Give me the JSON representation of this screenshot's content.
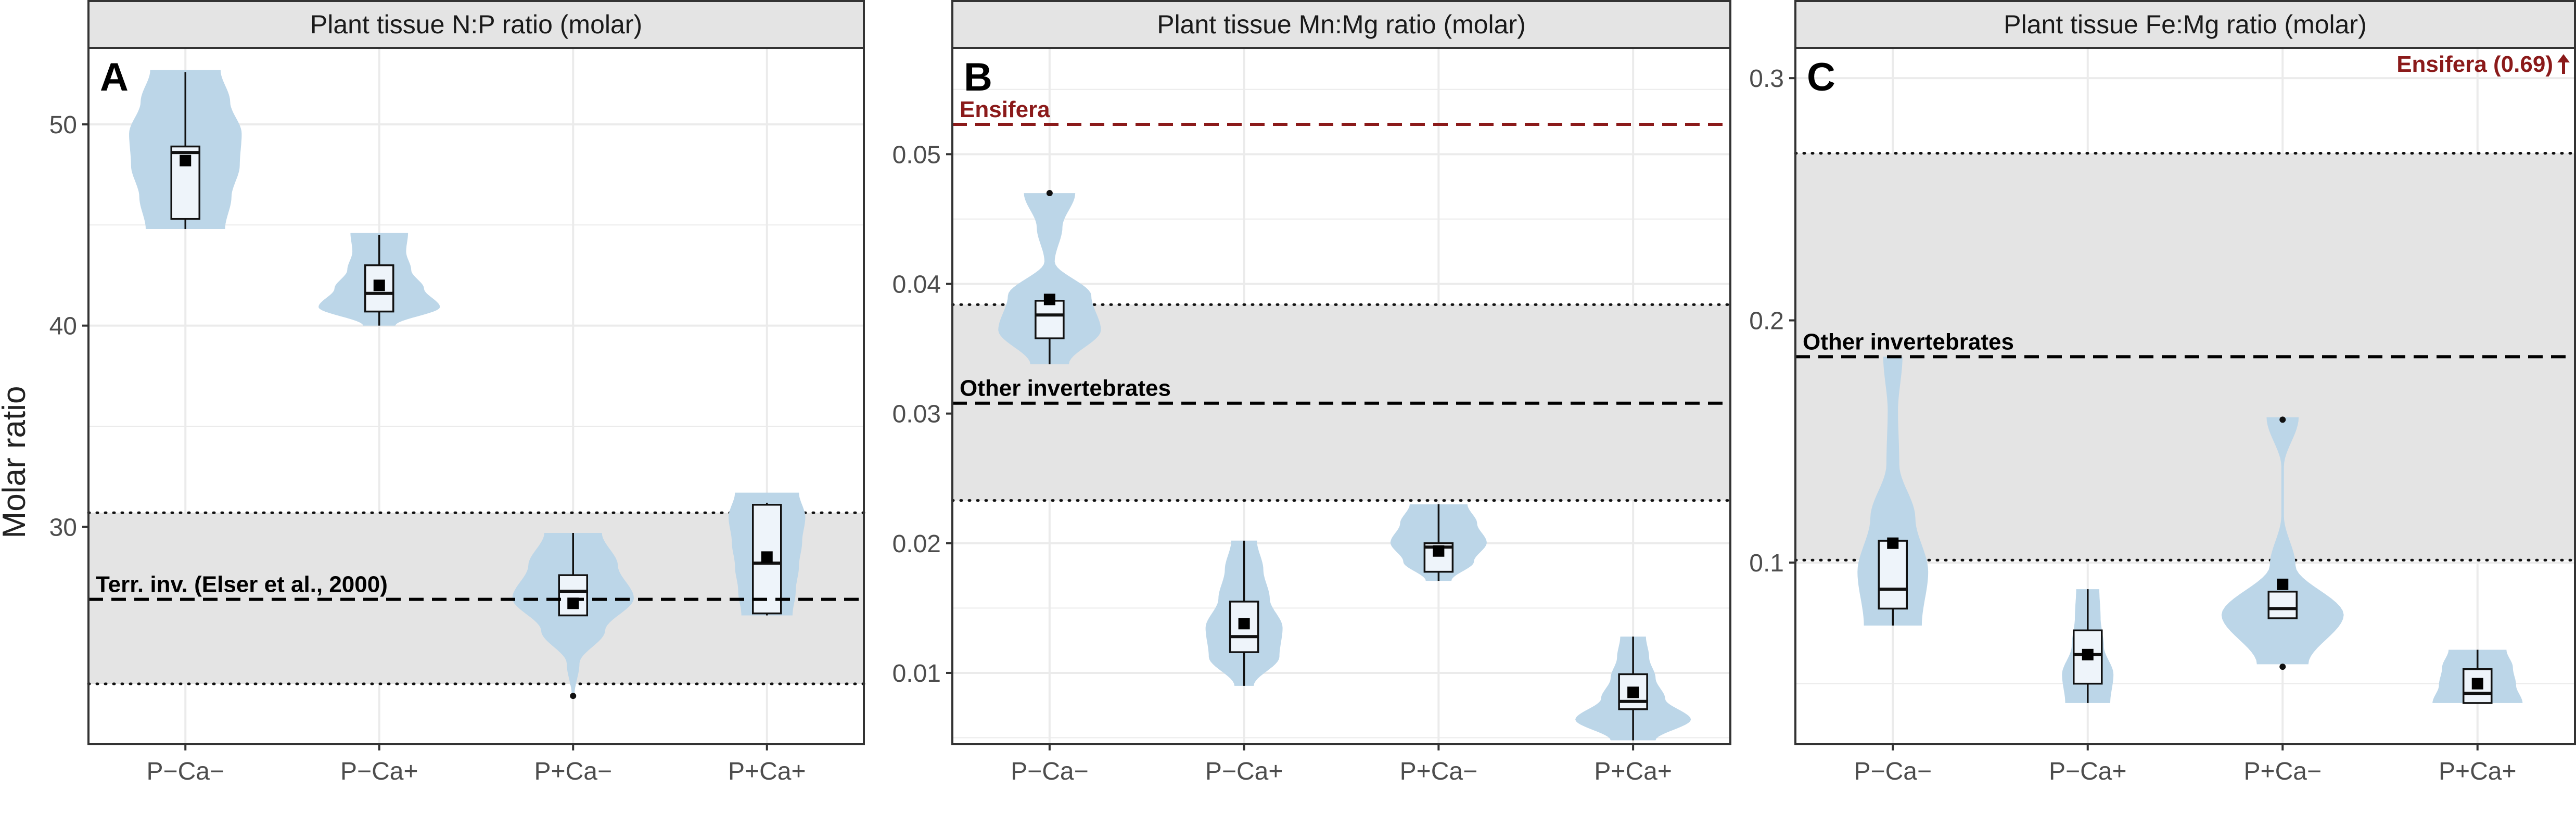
{
  "y_axis_title": "Molar ratio",
  "colors": {
    "violin": "#bcd6e8",
    "box": "#eef4fa",
    "band": "#e4e4e4",
    "strip": "#e4e4e4",
    "grid": "#ebebeb",
    "ensifera": "#8b1a1a",
    "reference": "#000000"
  },
  "chart_data": [
    {
      "type": "violin",
      "panel_label": "A",
      "title": "Plant tissue N:P ratio (molar)",
      "ylabel": "Molar ratio",
      "categories": [
        "P−Ca−",
        "P−Ca+",
        "P+Ca−",
        "P+Ca+"
      ],
      "ylim": [
        19.2,
        53.8
      ],
      "yticks": [
        30,
        40,
        50
      ],
      "grid": true,
      "groups": [
        {
          "violin_range": [
            44.8,
            52.7
          ],
          "violin_profile": [
            0.62,
            0.72,
            0.85,
            0.88,
            0.7,
            0.55
          ],
          "box": [
            45.3,
            48.6,
            48.9
          ],
          "whiskers": [
            44.8,
            52.6
          ],
          "mean": 48.2,
          "outliers": []
        },
        {
          "violin_range": [
            40.0,
            44.6
          ],
          "violin_profile": [
            0.25,
            0.95,
            0.7,
            0.5,
            0.42,
            0.45
          ],
          "box": [
            40.7,
            41.6,
            43.0
          ],
          "whiskers": [
            40.0,
            44.5
          ],
          "mean": 42.0,
          "outliers": []
        },
        {
          "violin_range": [
            21.6,
            29.7
          ],
          "violin_profile": [
            0.02,
            0.1,
            0.5,
            0.95,
            0.7,
            0.45
          ],
          "box": [
            25.6,
            26.8,
            27.6
          ],
          "whiskers": [
            25.6,
            29.7
          ],
          "mean": 26.2,
          "outliers": [
            21.6
          ]
        },
        {
          "violin_range": [
            25.6,
            31.7
          ],
          "violin_profile": [
            0.4,
            0.45,
            0.5,
            0.55,
            0.6,
            0.5
          ],
          "box": [
            25.7,
            28.2,
            31.1
          ],
          "whiskers": [
            25.6,
            31.2
          ],
          "mean": 28.5,
          "outliers": []
        }
      ],
      "band": [
        22.2,
        30.7
      ],
      "reference_lines": [
        {
          "label": "Terr. inv. (Elser et al., 2000)",
          "value": 26.4,
          "style": "dashed",
          "color": "#000000"
        }
      ]
    },
    {
      "type": "violin",
      "panel_label": "B",
      "title": "Plant tissue Mn:Mg ratio (molar)",
      "ylabel": "",
      "categories": [
        "P−Ca−",
        "P−Ca+",
        "P+Ca−",
        "P+Ca+"
      ],
      "ylim": [
        0.0045,
        0.0582
      ],
      "yticks": [
        0.01,
        0.02,
        0.03,
        0.04,
        0.05
      ],
      "grid": true,
      "groups": [
        {
          "violin_range": [
            0.0338,
            0.047
          ],
          "violin_profile": [
            0.3,
            0.8,
            0.65,
            0.08,
            0.2,
            0.4
          ],
          "box": [
            0.0358,
            0.0376,
            0.0387
          ],
          "whiskers": [
            0.0338,
            0.0387
          ],
          "mean": 0.0388,
          "outliers": [
            0.047
          ]
        },
        {
          "violin_range": [
            0.009,
            0.0202
          ],
          "violin_profile": [
            0.15,
            0.55,
            0.6,
            0.4,
            0.3,
            0.2
          ],
          "box": [
            0.0116,
            0.0128,
            0.0155
          ],
          "whiskers": [
            0.009,
            0.0202
          ],
          "mean": 0.0138,
          "outliers": []
        },
        {
          "violin_range": [
            0.0171,
            0.023
          ],
          "violin_profile": [
            0.2,
            0.55,
            0.75,
            0.6,
            0.45
          ],
          "box": [
            0.0178,
            0.0197,
            0.02
          ],
          "whiskers": [
            0.0171,
            0.023
          ],
          "mean": 0.0194,
          "outliers": []
        },
        {
          "violin_range": [
            0.0048,
            0.0128
          ],
          "violin_profile": [
            0.35,
            0.9,
            0.5,
            0.35,
            0.25,
            0.2
          ],
          "box": [
            0.0072,
            0.0078,
            0.0099
          ],
          "whiskers": [
            0.0048,
            0.0128
          ],
          "mean": 0.0085,
          "outliers": []
        }
      ],
      "band": [
        0.0233,
        0.0384
      ],
      "reference_lines": [
        {
          "label": "Other invertebrates",
          "value": 0.0308,
          "style": "dashed",
          "color": "#000000"
        },
        {
          "label": "Ensifera",
          "value": 0.0523,
          "style": "dashed",
          "color": "#8b1a1a"
        }
      ]
    },
    {
      "type": "violin",
      "panel_label": "C",
      "title": "Plant tissue Fe:Mg ratio (molar)",
      "ylabel": "",
      "categories": [
        "P−Ca−",
        "P−Ca+",
        "P+Ca−",
        "P+Ca+"
      ],
      "ylim": [
        0.025,
        0.3125
      ],
      "yticks": [
        0.1,
        0.2,
        0.3
      ],
      "grid": true,
      "groups": [
        {
          "violin_range": [
            0.074,
            0.185
          ],
          "violin_profile": [
            0.45,
            0.55,
            0.35,
            0.1,
            0.08,
            0.15
          ],
          "box": [
            0.081,
            0.089,
            0.109
          ],
          "whiskers": [
            0.074,
            0.109
          ],
          "mean": 0.108,
          "outliers": []
        },
        {
          "violin_range": [
            0.042,
            0.089
          ],
          "violin_profile": [
            0.35,
            0.4,
            0.25,
            0.2,
            0.18
          ],
          "box": [
            0.05,
            0.062,
            0.072
          ],
          "whiskers": [
            0.042,
            0.089
          ],
          "mean": 0.062,
          "outliers": []
        },
        {
          "violin_range": [
            0.058,
            0.16
          ],
          "violin_profile": [
            0.4,
            0.95,
            0.2,
            0.02,
            0.02,
            0.25
          ],
          "box": [
            0.077,
            0.081,
            0.088
          ],
          "whiskers": [
            0.077,
            0.088
          ],
          "mean": 0.091,
          "outliers": [
            0.057,
            0.159
          ]
        },
        {
          "violin_range": [
            0.042,
            0.064
          ],
          "violin_profile": [
            0.7,
            0.6,
            0.55,
            0.45
          ],
          "box": [
            0.042,
            0.046,
            0.056
          ],
          "whiskers": [
            0.042,
            0.064
          ],
          "mean": 0.05,
          "outliers": []
        }
      ],
      "band": [
        0.101,
        0.269
      ],
      "reference_lines": [
        {
          "label": "Other invertebrates",
          "value": 0.185,
          "style": "dashed",
          "color": "#000000"
        }
      ],
      "annotation": {
        "label": "Ensifera (0.69)",
        "value": 0.69,
        "color": "#8b1a1a",
        "direction": "up"
      }
    }
  ]
}
